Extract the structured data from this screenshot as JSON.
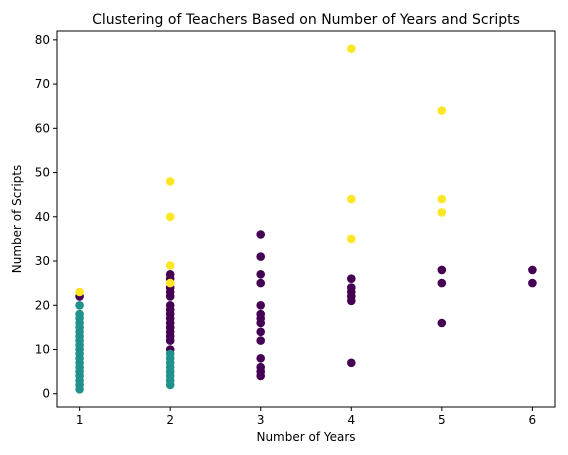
{
  "chart_data": {
    "type": "scatter",
    "title": "Clustering of Teachers Based on Number of Years and Scripts",
    "xlabel": "Number of Years",
    "ylabel": "Number of Scripts",
    "xlim": [
      0.75,
      6.25
    ],
    "ylim": [
      -3,
      82
    ],
    "xticks": [
      1,
      2,
      3,
      4,
      5,
      6
    ],
    "yticks": [
      0,
      10,
      20,
      30,
      40,
      50,
      60,
      70,
      80
    ],
    "grid": false,
    "legend": "none",
    "cluster_colors": [
      "#440154",
      "#21918c",
      "#fde725"
    ],
    "series": [
      {
        "cluster": 0,
        "color": "#440154",
        "points": [
          [
            1,
            22
          ],
          [
            2,
            27
          ],
          [
            2,
            26
          ],
          [
            2,
            24
          ],
          [
            2,
            23
          ],
          [
            2,
            22
          ],
          [
            2,
            20
          ],
          [
            2,
            19
          ],
          [
            2,
            18
          ],
          [
            2,
            17
          ],
          [
            2,
            16
          ],
          [
            2,
            15
          ],
          [
            2,
            14
          ],
          [
            2,
            13
          ],
          [
            2,
            12
          ],
          [
            2,
            10
          ],
          [
            3,
            36
          ],
          [
            3,
            31
          ],
          [
            3,
            27
          ],
          [
            3,
            25
          ],
          [
            3,
            20
          ],
          [
            3,
            18
          ],
          [
            3,
            17
          ],
          [
            3,
            16
          ],
          [
            3,
            14
          ],
          [
            3,
            12
          ],
          [
            3,
            8
          ],
          [
            3,
            6
          ],
          [
            3,
            5
          ],
          [
            3,
            4
          ],
          [
            4,
            26
          ],
          [
            4,
            24
          ],
          [
            4,
            23
          ],
          [
            4,
            22
          ],
          [
            4,
            21
          ],
          [
            4,
            7
          ],
          [
            5,
            28
          ],
          [
            5,
            25
          ],
          [
            5,
            16
          ],
          [
            6,
            28
          ],
          [
            6,
            25
          ]
        ]
      },
      {
        "cluster": 1,
        "color": "#21918c",
        "points": [
          [
            1,
            20
          ],
          [
            1,
            18
          ],
          [
            1,
            17
          ],
          [
            1,
            16
          ],
          [
            1,
            15
          ],
          [
            1,
            14
          ],
          [
            1,
            13
          ],
          [
            1,
            12
          ],
          [
            1,
            11
          ],
          [
            1,
            10
          ],
          [
            1,
            9
          ],
          [
            1,
            8
          ],
          [
            1,
            7
          ],
          [
            1,
            6
          ],
          [
            1,
            5
          ],
          [
            1,
            4
          ],
          [
            1,
            3
          ],
          [
            1,
            2
          ],
          [
            1,
            1
          ],
          [
            2,
            9
          ],
          [
            2,
            8
          ],
          [
            2,
            7
          ],
          [
            2,
            6
          ],
          [
            2,
            5
          ],
          [
            2,
            4
          ],
          [
            2,
            3
          ],
          [
            2,
            2
          ]
        ]
      },
      {
        "cluster": 2,
        "color": "#fde725",
        "points": [
          [
            1,
            23
          ],
          [
            2,
            48
          ],
          [
            2,
            40
          ],
          [
            2,
            29
          ],
          [
            2,
            25
          ],
          [
            4,
            78
          ],
          [
            4,
            44
          ],
          [
            4,
            35
          ],
          [
            5,
            64
          ],
          [
            5,
            44
          ],
          [
            5,
            41
          ]
        ]
      }
    ]
  }
}
